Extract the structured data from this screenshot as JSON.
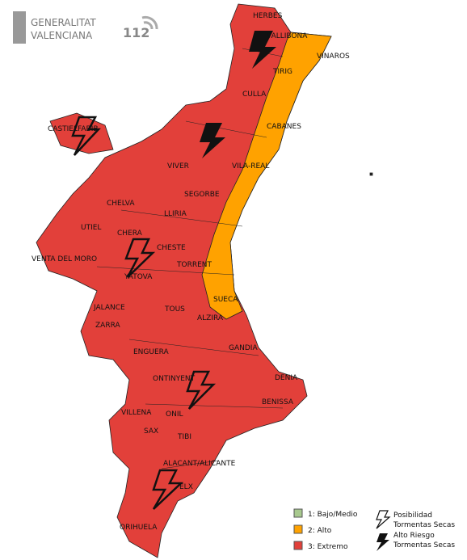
{
  "header": {
    "org_line1": "GENERALITAT",
    "org_line2": "VALENCIANA",
    "emergency_number": "112"
  },
  "places": [
    "HERBES",
    "VALLIBONA",
    "VINAROS",
    "TIRIG",
    "CULLA",
    "CABANES",
    "CASTIELFABIB",
    "VIVER",
    "VILA-REAL",
    "SEGORBE",
    "CHELVA",
    "LLIRIA",
    "UTIEL",
    "CHERA",
    "VENTA DEL MORO",
    "CHESTE",
    "TORRENT",
    "YATOVA",
    "SUECA",
    "TOUS",
    "JALANCE",
    "ZARRA",
    "ALZIRA",
    "ENGUERA",
    "GANDIA",
    "DENIA",
    "ONTINYENT",
    "BENISSA",
    "VILLENA",
    "ONIL",
    "SAX",
    "TIBI",
    "ALACANT/ALICANTE",
    "ELX",
    "ORIHUELA"
  ],
  "legend": {
    "levels": [
      {
        "label": "1: Bajo/Medio",
        "color": "#a8c98e"
      },
      {
        "label": "2: Alto",
        "color": "#ffa200"
      },
      {
        "label": "3: Extremo",
        "color": "#e2403a"
      }
    ],
    "storms": [
      {
        "label_line1": "Posibilidad",
        "label_line2": "Tormentas Secas"
      },
      {
        "label_line1": "Alto Riesgo",
        "label_line2": "Tormentas Secas"
      }
    ]
  }
}
